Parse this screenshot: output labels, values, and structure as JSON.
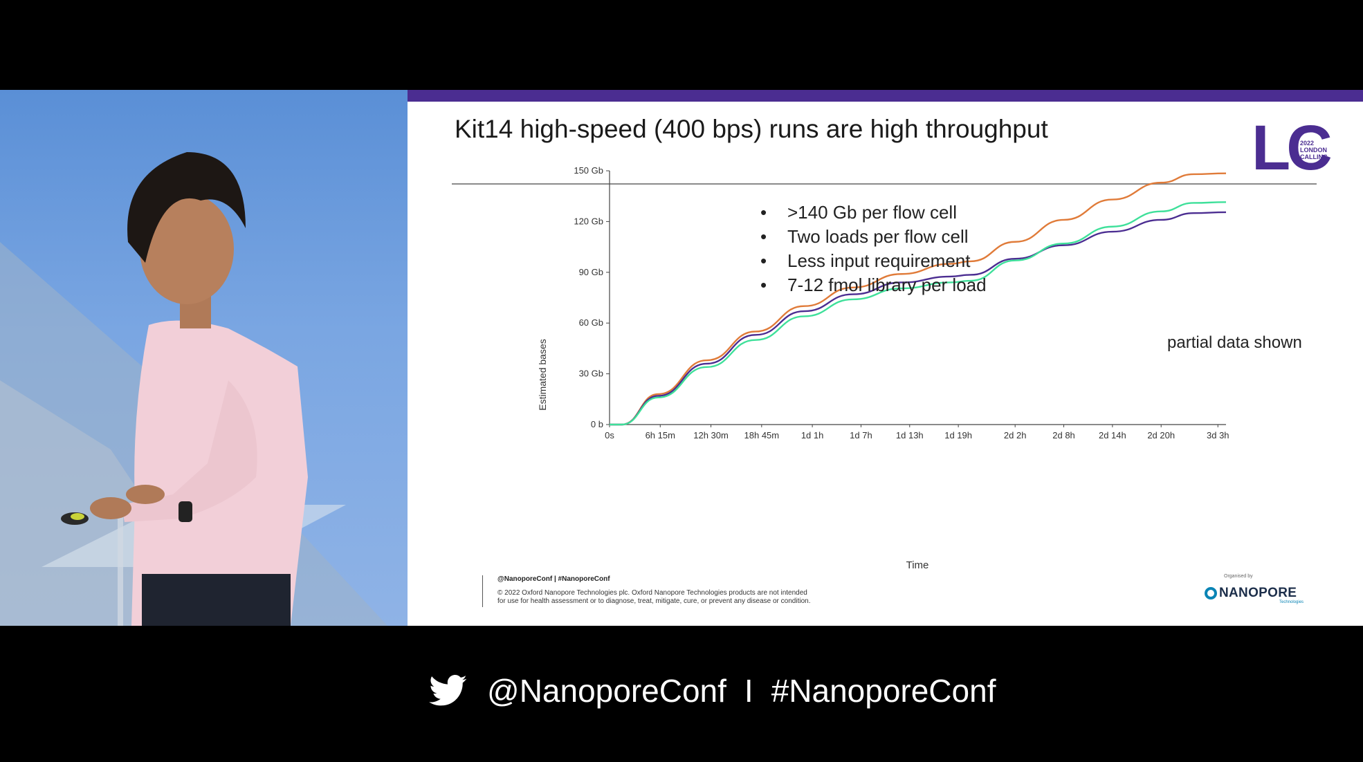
{
  "slide": {
    "title": "Kit14 high-speed (400 bps) runs are high throughput",
    "logo": {
      "letters": "LC",
      "year": "2022",
      "line1": "LONDON",
      "line2": "CALLING"
    },
    "bullets": [
      ">140 Gb per flow cell",
      "Two loads per flow cell",
      "Less input requirement",
      "7-12 fmol library per load"
    ],
    "note": "partial data shown",
    "footer": {
      "handle": "@NanoporeConf | #NanoporeConf",
      "disclaimer_line1": "© 2022 Oxford Nanopore Technologies plc. Oxford Nanopore Technologies products are not intended",
      "disclaimer_line2": "for use for health assessment or to diagnose, treat, mitigate, cure, or prevent any disease or condition."
    },
    "organiser": {
      "caption": "Organised by",
      "name": "NANOPORE",
      "sub": "Technologies"
    }
  },
  "bottom_bar": {
    "icon": "twitter-bird-icon",
    "handle": "@NanoporeConf",
    "separator": "I",
    "hashtag": "#NanoporeConf"
  },
  "colors": {
    "accent": "#4b2d91",
    "series_orange": "#e07b39",
    "series_purple": "#4b2d91",
    "series_green": "#3ee09a",
    "nanopore_blue": "#0a84b5"
  },
  "chart_data": {
    "type": "line",
    "xlabel": "Time",
    "ylabel": "Estimated bases",
    "x_tick_labels": [
      "0s",
      "6h 15m",
      "12h 30m",
      "18h 45m",
      "1d 1h",
      "1d 7h",
      "1d 13h",
      "1d 19h",
      "2d 2h",
      "2d 8h",
      "2d 14h",
      "2d 20h",
      "3d 3h"
    ],
    "x_ticks_hours": [
      0,
      6.25,
      12.5,
      18.75,
      25,
      31,
      37,
      43,
      50,
      56,
      62,
      68,
      75
    ],
    "y_tick_labels": [
      "0 b",
      "30 Gb",
      "60 Gb",
      "90 Gb",
      "120 Gb",
      "150 Gb"
    ],
    "y_ticks": [
      0,
      30,
      60,
      90,
      120,
      150
    ],
    "ylim": [
      0,
      150
    ],
    "xlim_hours": [
      0,
      76
    ],
    "unit": "Gb",
    "series": [
      {
        "color": "#e07b39",
        "x_hours": [
          0,
          1.5,
          6,
          12,
          18,
          24,
          30,
          36,
          42,
          44.5,
          50,
          56,
          62,
          68,
          72,
          76
        ],
        "values": [
          0,
          0,
          18,
          38,
          55,
          70,
          81,
          89,
          95,
          96.5,
          108,
          121,
          133,
          143,
          148,
          148.5
        ]
      },
      {
        "color": "#4b2d91",
        "x_hours": [
          0,
          1.5,
          6,
          12,
          18,
          24,
          30,
          36,
          42,
          44.5,
          50,
          56,
          62,
          68,
          72,
          76
        ],
        "values": [
          0,
          0,
          17,
          36,
          53,
          67,
          77,
          84,
          87.5,
          88.5,
          98,
          106,
          114,
          121,
          125,
          125.5
        ]
      },
      {
        "color": "#3ee09a",
        "x_hours": [
          0,
          1.5,
          6,
          12,
          18,
          24,
          30,
          36,
          42,
          44.5,
          50,
          56,
          62,
          68,
          72,
          76
        ],
        "values": [
          0,
          0,
          16,
          34,
          50,
          64,
          74,
          80.5,
          84,
          85,
          97,
          107,
          117,
          126,
          131,
          131.5
        ]
      }
    ]
  }
}
